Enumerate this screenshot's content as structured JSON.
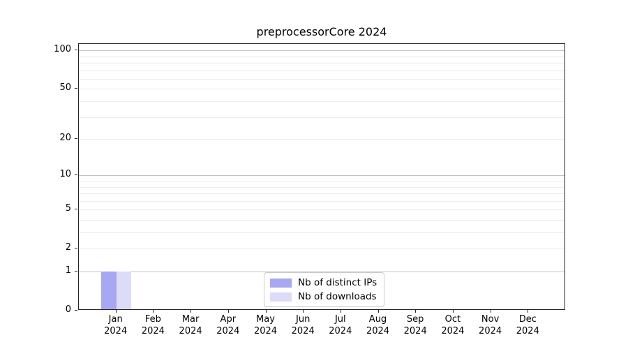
{
  "chart_data": {
    "type": "bar",
    "title": "preprocessorCore 2024",
    "categories": [
      "Jan 2024",
      "Feb 2024",
      "Mar 2024",
      "Apr 2024",
      "May 2024",
      "Jun 2024",
      "Jul 2024",
      "Aug 2024",
      "Sep 2024",
      "Oct 2024",
      "Nov 2024",
      "Dec 2024"
    ],
    "months": [
      "Jan",
      "Feb",
      "Mar",
      "Apr",
      "May",
      "Jun",
      "Jul",
      "Aug",
      "Sep",
      "Oct",
      "Nov",
      "Dec"
    ],
    "year": "2024",
    "series": [
      {
        "name": "Nb of distinct IPs",
        "color": "#a8a8f2",
        "values": [
          1,
          0,
          0,
          0,
          0,
          0,
          0,
          0,
          0,
          0,
          0,
          0
        ]
      },
      {
        "name": "Nb of downloads",
        "color": "#dcdcf9",
        "values": [
          1,
          0,
          0,
          0,
          0,
          0,
          0,
          0,
          0,
          0,
          0,
          0
        ]
      }
    ],
    "xlabel": "",
    "ylabel": "",
    "yscale": "log1p",
    "ylim": [
      0,
      112
    ],
    "y_ticks": [
      100,
      50,
      20,
      10,
      5,
      2,
      1,
      0
    ],
    "y_gridlines_major": [
      100,
      10,
      1
    ],
    "y_gridlines_minor": [
      90,
      80,
      70,
      60,
      50,
      40,
      30,
      20,
      9,
      8,
      7,
      6,
      5,
      4,
      3,
      2
    ],
    "grid": true,
    "legend_position": "lower center"
  },
  "colors": {
    "grid_major": "#c2c2c2",
    "grid_minor": "#ececec",
    "spine": "#262626",
    "background": "#ffffff"
  }
}
